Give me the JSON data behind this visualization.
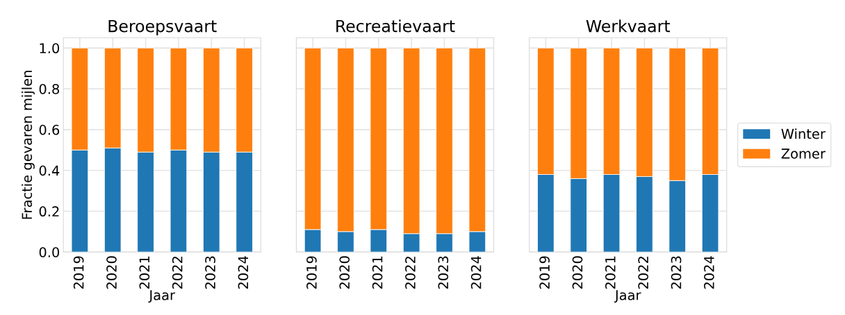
{
  "chart_data": [
    {
      "type": "bar",
      "stacked": true,
      "title": "Beroepsvaart",
      "xlabel": "Jaar",
      "ylabel": "Fractie gevaren mijlen",
      "categories": [
        "2019",
        "2020",
        "2021",
        "2022",
        "2023",
        "2024"
      ],
      "series": [
        {
          "name": "Winter",
          "color": "#1f77b4",
          "values": [
            0.5,
            0.51,
            0.49,
            0.5,
            0.49,
            0.49
          ]
        },
        {
          "name": "Zomer",
          "color": "#ff7f0e",
          "values": [
            0.5,
            0.49,
            0.51,
            0.5,
            0.51,
            0.51
          ]
        }
      ],
      "ylim": [
        0,
        1.05
      ],
      "yticks": [
        {
          "value": 0,
          "label": "0.0"
        },
        0.2,
        0.4,
        0.6,
        0.8,
        {
          "value": 1,
          "label": "1.0"
        }
      ],
      "grid": true,
      "legend": "right"
    },
    {
      "type": "bar",
      "stacked": true,
      "title": "Recreatievaart",
      "categories": [
        "2019",
        "2020",
        "2021",
        "2022",
        "2023",
        "2024"
      ],
      "series": [
        {
          "color": "#1f77b4",
          "values": [
            0.11,
            0.1,
            0.11,
            0.09,
            0.09,
            0.1
          ]
        },
        {
          "color": "#ff7f0e",
          "values": [
            0.89,
            0.9,
            0.89,
            0.91,
            0.91,
            0.9
          ]
        }
      ],
      "ylim": [
        0,
        1.05
      ],
      "yticks": [
        {
          "value": 0,
          "label": null
        },
        {
          "value": 0.2,
          "label": null
        },
        {
          "value": 0.4,
          "label": null
        },
        {
          "value": 0.6,
          "label": null
        },
        {
          "value": 0.8,
          "label": null
        },
        {
          "value": 1,
          "label": null
        }
      ],
      "tick_labels": "x",
      "grid": true
    },
    {
      "type": "bar",
      "stacked": true,
      "title": "Werkvaart",
      "xlabel": "Jaar",
      "categories": [
        "2019",
        "2020",
        "2021",
        "2022",
        "2023",
        "2024"
      ],
      "series": [
        {
          "color": "#1f77b4",
          "values": [
            0.38,
            0.36,
            0.38,
            0.37,
            0.35,
            0.38
          ]
        },
        {
          "color": "#ff7f0e",
          "values": [
            0.62,
            0.64,
            0.62,
            0.63,
            0.65,
            0.62
          ]
        }
      ],
      "ylim": [
        0,
        1.05
      ],
      "yticks": [
        {
          "value": 0,
          "label": null
        },
        {
          "value": 0.2,
          "label": null
        },
        {
          "value": 0.4,
          "label": null
        },
        {
          "value": 0.6,
          "label": null
        },
        {
          "value": 0.8,
          "label": null
        },
        {
          "value": 1,
          "label": null
        }
      ],
      "tick_labels": "x",
      "grid": true
    }
  ]
}
